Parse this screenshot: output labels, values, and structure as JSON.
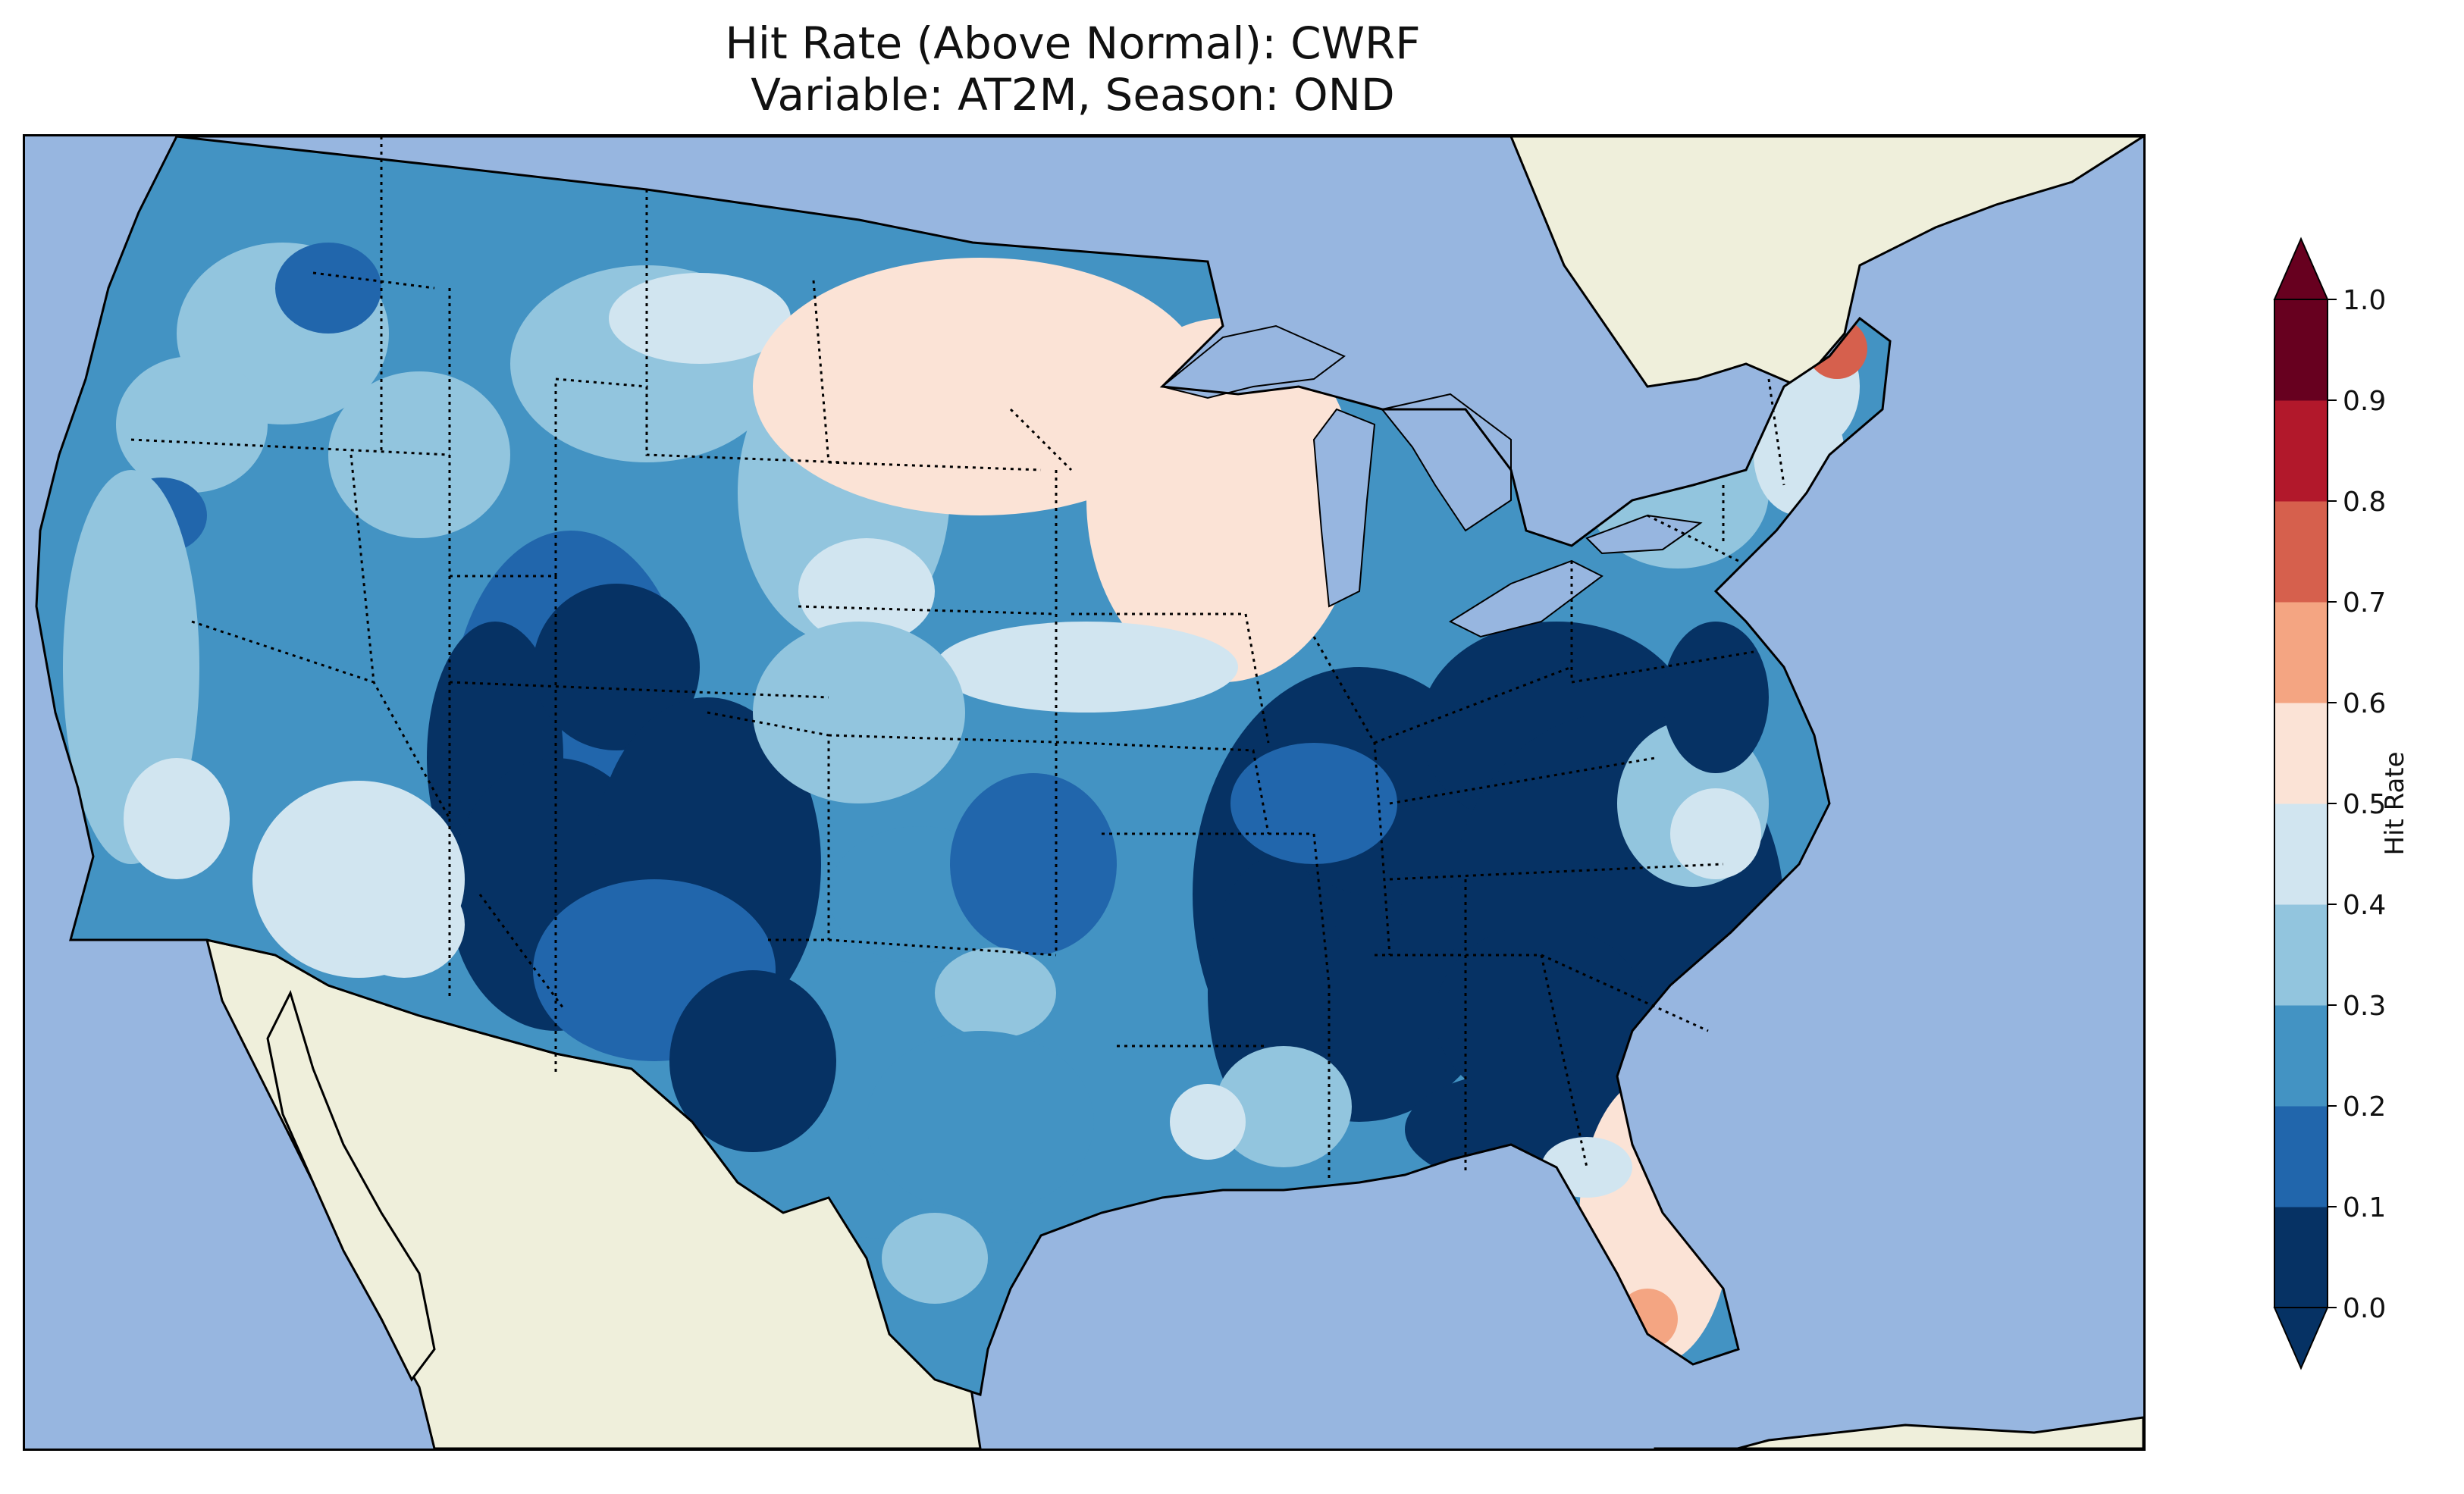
{
  "title": {
    "line1": "Hit Rate (Above Normal): CWRF",
    "line2": "Variable: AT2M, Season: OND"
  },
  "map": {
    "region": "Contiguous United States",
    "projection": "lat-lon (PlateCarree)",
    "ocean_color": "#97b6e0",
    "land_color": "#efefdb",
    "border_style": "dotted",
    "regions": [
      {
        "area": "Pacific Northwest coast",
        "hit_rate_bin": "0.2-0.3"
      },
      {
        "area": "Northern Rockies",
        "hit_rate_bin": "0.2-0.3"
      },
      {
        "area": "Northern Plains (ND, MN, WI)",
        "hit_rate_bin": "0.5-0.6"
      },
      {
        "area": "Southwest (UT, AZ, NM, CO)",
        "hit_rate_bin": "0.0-0.2"
      },
      {
        "area": "Central Plains",
        "hit_rate_bin": "0.2-0.3"
      },
      {
        "area": "Lower Mississippi Valley / Tennessee Valley",
        "hit_rate_bin": "0.0-0.1"
      },
      {
        "area": "Carolinas and Georgia",
        "hit_rate_bin": "0.0-0.1"
      },
      {
        "area": "Florida peninsula",
        "hit_rate_bin": "0.5-0.6"
      },
      {
        "area": "Southwest Florida",
        "hit_rate_bin": "0.6-0.7"
      },
      {
        "area": "Northern Maine",
        "hit_rate_bin": "0.7-0.8"
      },
      {
        "area": "Texas",
        "hit_rate_bin": "0.2-0.3"
      },
      {
        "area": "Southern California deserts",
        "hit_rate_bin": "0.4-0.5"
      }
    ]
  },
  "colorbar": {
    "label": "Hit Rate",
    "colormap": "RdBu_r",
    "extend": "both",
    "ticks": [
      "0.0",
      "0.1",
      "0.2",
      "0.3",
      "0.4",
      "0.5",
      "0.6",
      "0.7",
      "0.8",
      "0.9",
      "1.0"
    ],
    "colors": [
      "#063264",
      "#2166ac",
      "#4393c3",
      "#92c5de",
      "#d1e5f0",
      "#fbe3d6",
      "#f4a582",
      "#d6604d",
      "#b2182b",
      "#67001f"
    ],
    "under_color": "#063264",
    "over_color": "#67001f"
  }
}
